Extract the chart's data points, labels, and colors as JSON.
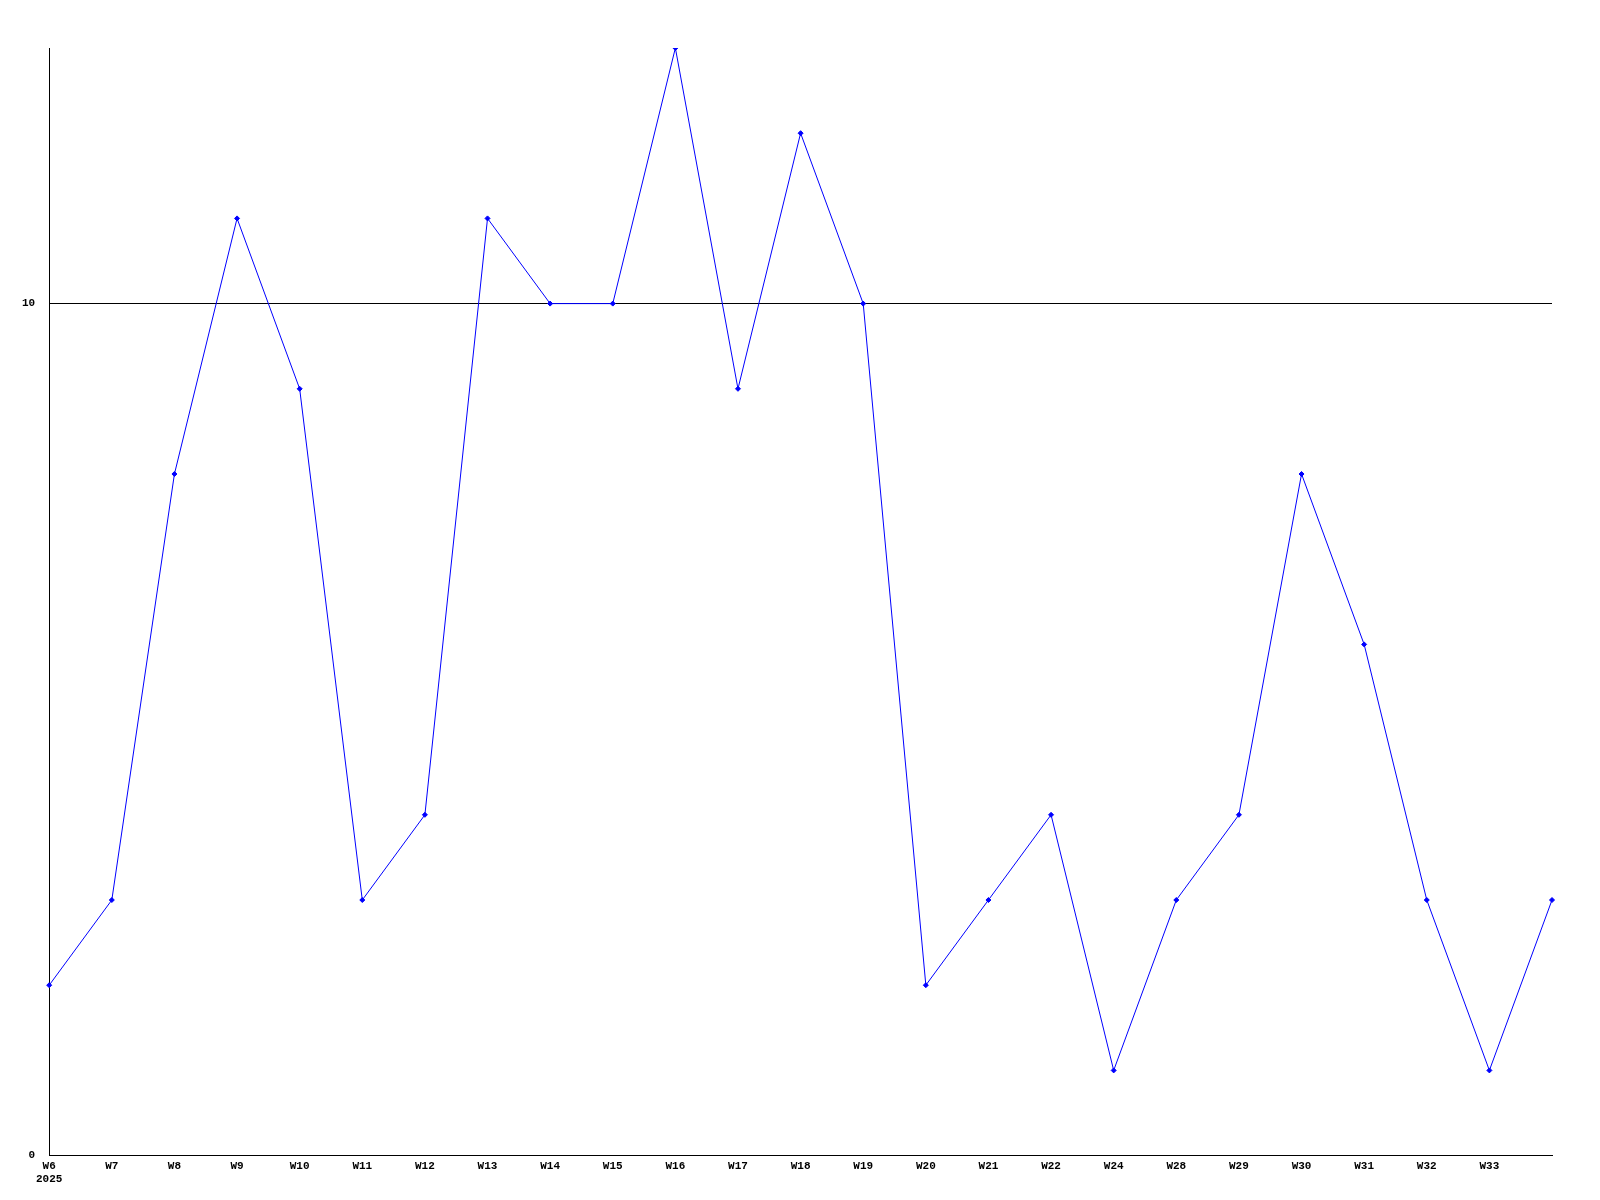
{
  "chart_data": {
    "type": "line",
    "categories": [
      "W6\n2025",
      "W7",
      "W8",
      "W9",
      "W10",
      "W11",
      "W12",
      "W13",
      "W14",
      "W15",
      "W16",
      "W17",
      "W18",
      "W19",
      "W20",
      "W21",
      "W22",
      "W24",
      "W28",
      "W29",
      "W30",
      "W31",
      "W32",
      "W33",
      null
    ],
    "series": [
      {
        "color": "#0000ff",
        "values": [
          2,
          3,
          8,
          11,
          9,
          3,
          4,
          11,
          10,
          10,
          13,
          9,
          12,
          10,
          2,
          3,
          4,
          1,
          3,
          4,
          8,
          6,
          3,
          1,
          3
        ]
      }
    ],
    "ylim": [
      0,
      13
    ],
    "yticks": [
      0,
      10
    ],
    "grid": "y",
    "marker": "diamond",
    "line_style": "solid",
    "legend": false
  }
}
